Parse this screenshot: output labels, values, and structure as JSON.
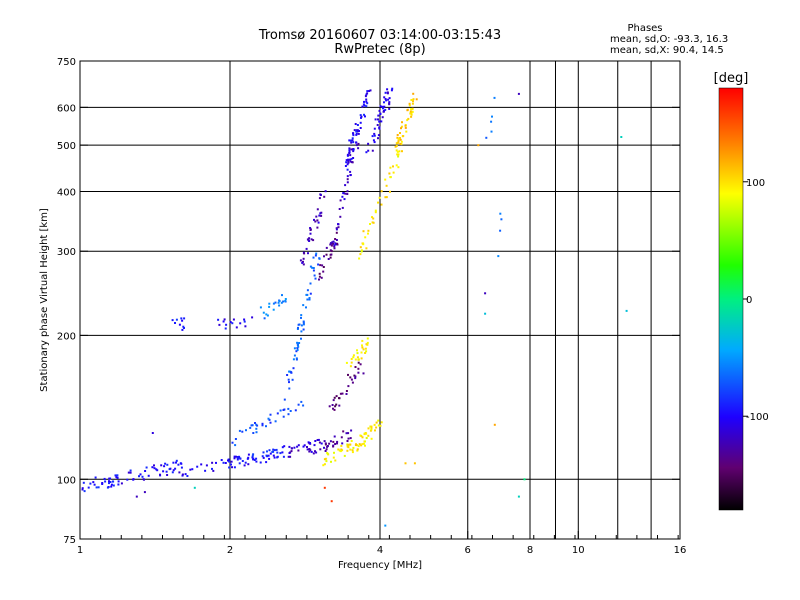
{
  "chart_data": {
    "type": "scatter",
    "title": "Tromsø 20160607 03:14:00-03:15:43",
    "subtitle": "RwPretec (8p)",
    "xlabel": "Frequency [MHz]",
    "ylabel": "Stationary phase Virtual Height [km]",
    "x_scale": "log",
    "y_scale": "log",
    "xlim": [
      1,
      16
    ],
    "ylim": [
      75,
      750
    ],
    "x_ticks": [
      1,
      2,
      4,
      6,
      8,
      10,
      16
    ],
    "x_tick_labels": [
      "1",
      "2",
      "4",
      "6",
      "8",
      "10",
      "16"
    ],
    "y_ticks": [
      75,
      100,
      200,
      300,
      400,
      500,
      600,
      750
    ],
    "y_tick_labels": [
      "75",
      "100",
      "200",
      "300",
      "400",
      "500",
      "600",
      "750"
    ],
    "grid": true,
    "stats": {
      "heading": "Phases",
      "line_o": "mean, sd,O: -93.3, 16.3",
      "line_x": "mean, sd,X:  90.4, 14.5"
    },
    "colorbar": {
      "label": "[deg]",
      "range": [
        -180,
        180
      ],
      "ticks": [
        100,
        0,
        -100
      ],
      "tick_labels": [
        "100",
        "0",
        "-100"
      ]
    },
    "segments": [
      {
        "from": [
          1.0,
          97
        ],
        "to": [
          1.2,
          100
        ],
        "n": 35,
        "phase": -95
      },
      {
        "from": [
          1.2,
          100
        ],
        "to": [
          1.6,
          107
        ],
        "n": 40,
        "phase": -100
      },
      {
        "from": [
          1.6,
          104
        ],
        "to": [
          2.2,
          110
        ],
        "n": 45,
        "phase": -100
      },
      {
        "from": [
          2.2,
          110
        ],
        "to": [
          2.6,
          114
        ],
        "n": 35,
        "phase": -90
      },
      {
        "from": [
          2.6,
          114
        ],
        "to": [
          3.1,
          118
        ],
        "n": 35,
        "phase": -115
      },
      {
        "from": [
          3.1,
          118
        ],
        "to": [
          3.5,
          125
        ],
        "n": 25,
        "phase": -130
      },
      {
        "from": [
          3.1,
          110
        ],
        "to": [
          3.6,
          118
        ],
        "n": 35,
        "phase": 95
      },
      {
        "from": [
          3.6,
          118
        ],
        "to": [
          4.0,
          130
        ],
        "n": 35,
        "phase": 95
      },
      {
        "from": [
          3.4,
          170
        ],
        "to": [
          3.8,
          195
        ],
        "n": 25,
        "phase": 95
      },
      {
        "from": [
          3.6,
          290
        ],
        "to": [
          4.4,
          480
        ],
        "n": 40,
        "phase": 95
      },
      {
        "from": [
          4.3,
          480
        ],
        "to": [
          4.7,
          640
        ],
        "n": 50,
        "phase": 105
      },
      {
        "from": [
          2.3,
          220
        ],
        "to": [
          2.6,
          240
        ],
        "n": 20,
        "phase": -60
      },
      {
        "from": [
          2.6,
          150
        ],
        "to": [
          3.0,
          300
        ],
        "n": 60,
        "phase": -70
      },
      {
        "from": [
          2.8,
          280
        ],
        "to": [
          3.1,
          400
        ],
        "n": 35,
        "phase": -120
      },
      {
        "from": [
          3.0,
          260
        ],
        "to": [
          3.3,
          330
        ],
        "n": 25,
        "phase": -140
      },
      {
        "from": [
          3.2,
          300
        ],
        "to": [
          3.6,
          520
        ],
        "n": 45,
        "phase": -120
      },
      {
        "from": [
          3.4,
          450
        ],
        "to": [
          3.8,
          650
        ],
        "n": 60,
        "phase": -100
      },
      {
        "from": [
          3.8,
          480
        ],
        "to": [
          4.2,
          650
        ],
        "n": 50,
        "phase": -105
      },
      {
        "from": [
          3.2,
          140
        ],
        "to": [
          3.7,
          175
        ],
        "n": 30,
        "phase": -140
      },
      {
        "from": [
          2.0,
          120
        ],
        "to": [
          2.8,
          145
        ],
        "n": 35,
        "phase": -75
      },
      {
        "from": [
          1.9,
          210
        ],
        "to": [
          2.2,
          215
        ],
        "n": 15,
        "phase": -100
      },
      {
        "from": [
          1.5,
          210
        ],
        "to": [
          1.65,
          212
        ],
        "n": 10,
        "phase": -90
      },
      {
        "from": [
          6.5,
          520
        ],
        "to": [
          6.9,
          640
        ],
        "n": 5,
        "phase": -60
      },
      {
        "from": [
          6.8,
          250
        ],
        "to": [
          7.0,
          380
        ],
        "n": 4,
        "phase": -60
      }
    ],
    "points": [
      [
        7.8,
        100,
        0
      ],
      [
        7.6,
        92,
        -20
      ],
      [
        4.1,
        80,
        -50
      ],
      [
        12.2,
        520,
        -20
      ],
      [
        12.5,
        225,
        -30
      ],
      [
        7.6,
        640,
        -120
      ],
      [
        3.1,
        96,
        160
      ],
      [
        4.5,
        108,
        110
      ],
      [
        4.7,
        108,
        110
      ],
      [
        6.8,
        130,
        120
      ],
      [
        6.5,
        222,
        -30
      ],
      [
        6.5,
        245,
        -120
      ],
      [
        1.3,
        92,
        -120
      ],
      [
        1.35,
        94,
        -120
      ],
      [
        1.7,
        96,
        -20
      ],
      [
        1.4,
        125,
        -110
      ],
      [
        3.2,
        90,
        160
      ],
      [
        6.3,
        500,
        120
      ]
    ]
  }
}
